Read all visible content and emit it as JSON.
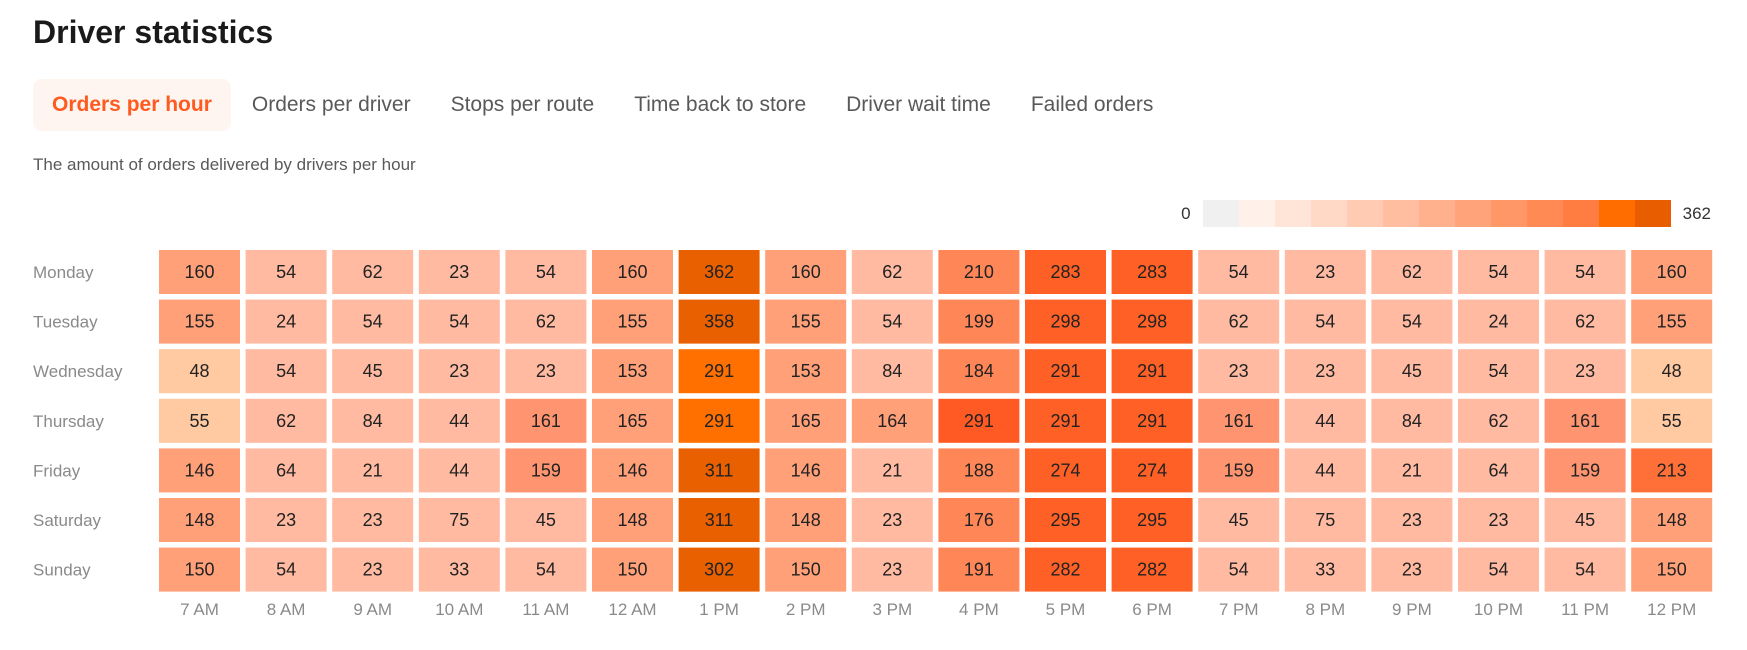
{
  "page": {
    "title": "Driver statistics",
    "subtitle": "The amount of orders delivered by drivers per hour"
  },
  "tabs": [
    {
      "label": "Orders per hour",
      "active": true
    },
    {
      "label": "Orders per driver",
      "active": false
    },
    {
      "label": "Stops per route",
      "active": false
    },
    {
      "label": "Time back to store",
      "active": false
    },
    {
      "label": "Driver wait time",
      "active": false
    },
    {
      "label": "Failed orders",
      "active": false
    }
  ],
  "legend": {
    "min": "0",
    "max": "362",
    "colors": [
      "#f0f0f0",
      "#fff1ea",
      "#ffe5d8",
      "#ffd8c6",
      "#ffcbb3",
      "#ffbea0",
      "#ffb18d",
      "#ffa47a",
      "#ff9767",
      "#ff8a54",
      "#ff7d41",
      "#ff6d00",
      "#e85d00"
    ]
  },
  "chart_data": {
    "type": "heatmap",
    "title": "",
    "x": [
      "7 AM",
      "8 AM",
      "9 AM",
      "10 AM",
      "11 AM",
      "12 AM",
      "1 PM",
      "2 PM",
      "3 PM",
      "4 PM",
      "5 PM",
      "6 PM",
      "7 PM",
      "8 PM",
      "9 PM",
      "10 PM",
      "11 PM",
      "12 PM"
    ],
    "y": [
      "Monday",
      "Tuesday",
      "Wednesday",
      "Thursday",
      "Friday",
      "Saturday",
      "Sunday"
    ],
    "values": [
      [
        160,
        54,
        62,
        23,
        54,
        160,
        362,
        160,
        62,
        210,
        283,
        283,
        54,
        23,
        62,
        54,
        54,
        160
      ],
      [
        155,
        24,
        54,
        54,
        62,
        155,
        358,
        155,
        54,
        199,
        298,
        298,
        62,
        54,
        54,
        24,
        62,
        155
      ],
      [
        48,
        54,
        45,
        23,
        23,
        153,
        291,
        153,
        84,
        184,
        291,
        291,
        23,
        23,
        45,
        54,
        23,
        48
      ],
      [
        55,
        62,
        84,
        44,
        161,
        165,
        291,
        165,
        164,
        291,
        291,
        291,
        161,
        44,
        84,
        62,
        161,
        55
      ],
      [
        146,
        64,
        21,
        44,
        159,
        146,
        311,
        146,
        21,
        188,
        274,
        274,
        159,
        44,
        21,
        64,
        159,
        213
      ],
      [
        148,
        23,
        23,
        75,
        45,
        148,
        311,
        148,
        23,
        176,
        295,
        295,
        45,
        75,
        23,
        23,
        45,
        148
      ],
      [
        150,
        54,
        23,
        33,
        54,
        150,
        302,
        150,
        23,
        191,
        282,
        282,
        54,
        33,
        23,
        54,
        54,
        150
      ]
    ],
    "cell_colors": [
      [
        "#ffa079",
        "#ffbaa1",
        "#ffbaa1",
        "#ffbaa1",
        "#ffbaa1",
        "#ffa079",
        "#e86000",
        "#ffa079",
        "#ffbaa1",
        "#ff8657",
        "#ff6025",
        "#ff6025",
        "#ffbaa1",
        "#ffbaa1",
        "#ffbaa1",
        "#ffbaa1",
        "#ffbaa1",
        "#ffa079"
      ],
      [
        "#ffa079",
        "#ffbaa1",
        "#ffbaa1",
        "#ffbaa1",
        "#ffbaa1",
        "#ffa079",
        "#e86000",
        "#ffa079",
        "#ffbaa1",
        "#ff8657",
        "#ff6025",
        "#ff6025",
        "#ffbaa1",
        "#ffbaa1",
        "#ffbaa1",
        "#ffbaa1",
        "#ffbaa1",
        "#ffa079"
      ],
      [
        "#ffc9a2",
        "#ffbaa1",
        "#ffbaa1",
        "#ffbaa1",
        "#ffbaa1",
        "#ffa079",
        "#ff7000",
        "#ffa079",
        "#ffbaa1",
        "#ff8657",
        "#ff6025",
        "#ff6025",
        "#ffbaa1",
        "#ffbaa1",
        "#ffbaa1",
        "#ffbaa1",
        "#ffbaa1",
        "#ffc9a2"
      ],
      [
        "#ffc9a2",
        "#ffbaa1",
        "#ffbaa1",
        "#ffbaa1",
        "#ff9470",
        "#ffa079",
        "#ff7000",
        "#ffa079",
        "#ffa079",
        "#ff5a24",
        "#ff6025",
        "#ff6025",
        "#ff9470",
        "#ffbaa1",
        "#ffbaa1",
        "#ffbaa1",
        "#ff9470",
        "#ffc9a2"
      ],
      [
        "#ffa079",
        "#ffbaa1",
        "#ffbaa1",
        "#ffbaa1",
        "#ff9470",
        "#ffa079",
        "#e86000",
        "#ffa079",
        "#ffbaa1",
        "#ff8657",
        "#ff6025",
        "#ff6025",
        "#ff9470",
        "#ffbaa1",
        "#ffbaa1",
        "#ffbaa1",
        "#ff9470",
        "#ff7038"
      ],
      [
        "#ffa079",
        "#ffbaa1",
        "#ffbaa1",
        "#ffbaa1",
        "#ffbaa1",
        "#ffa079",
        "#e86000",
        "#ffa079",
        "#ffbaa1",
        "#ff8657",
        "#ff6025",
        "#ff6025",
        "#ffbaa1",
        "#ffbaa1",
        "#ffbaa1",
        "#ffbaa1",
        "#ffbaa1",
        "#ffa079"
      ],
      [
        "#ffa079",
        "#ffbaa1",
        "#ffbaa1",
        "#ffbaa1",
        "#ffbaa1",
        "#ffa079",
        "#e86000",
        "#ffa079",
        "#ffbaa1",
        "#ff8657",
        "#ff6025",
        "#ff6025",
        "#ffbaa1",
        "#ffbaa1",
        "#ffbaa1",
        "#ffbaa1",
        "#ffbaa1",
        "#ffa079"
      ]
    ],
    "value_range": [
      0,
      362
    ],
    "legend": "top-right",
    "grid": false
  }
}
